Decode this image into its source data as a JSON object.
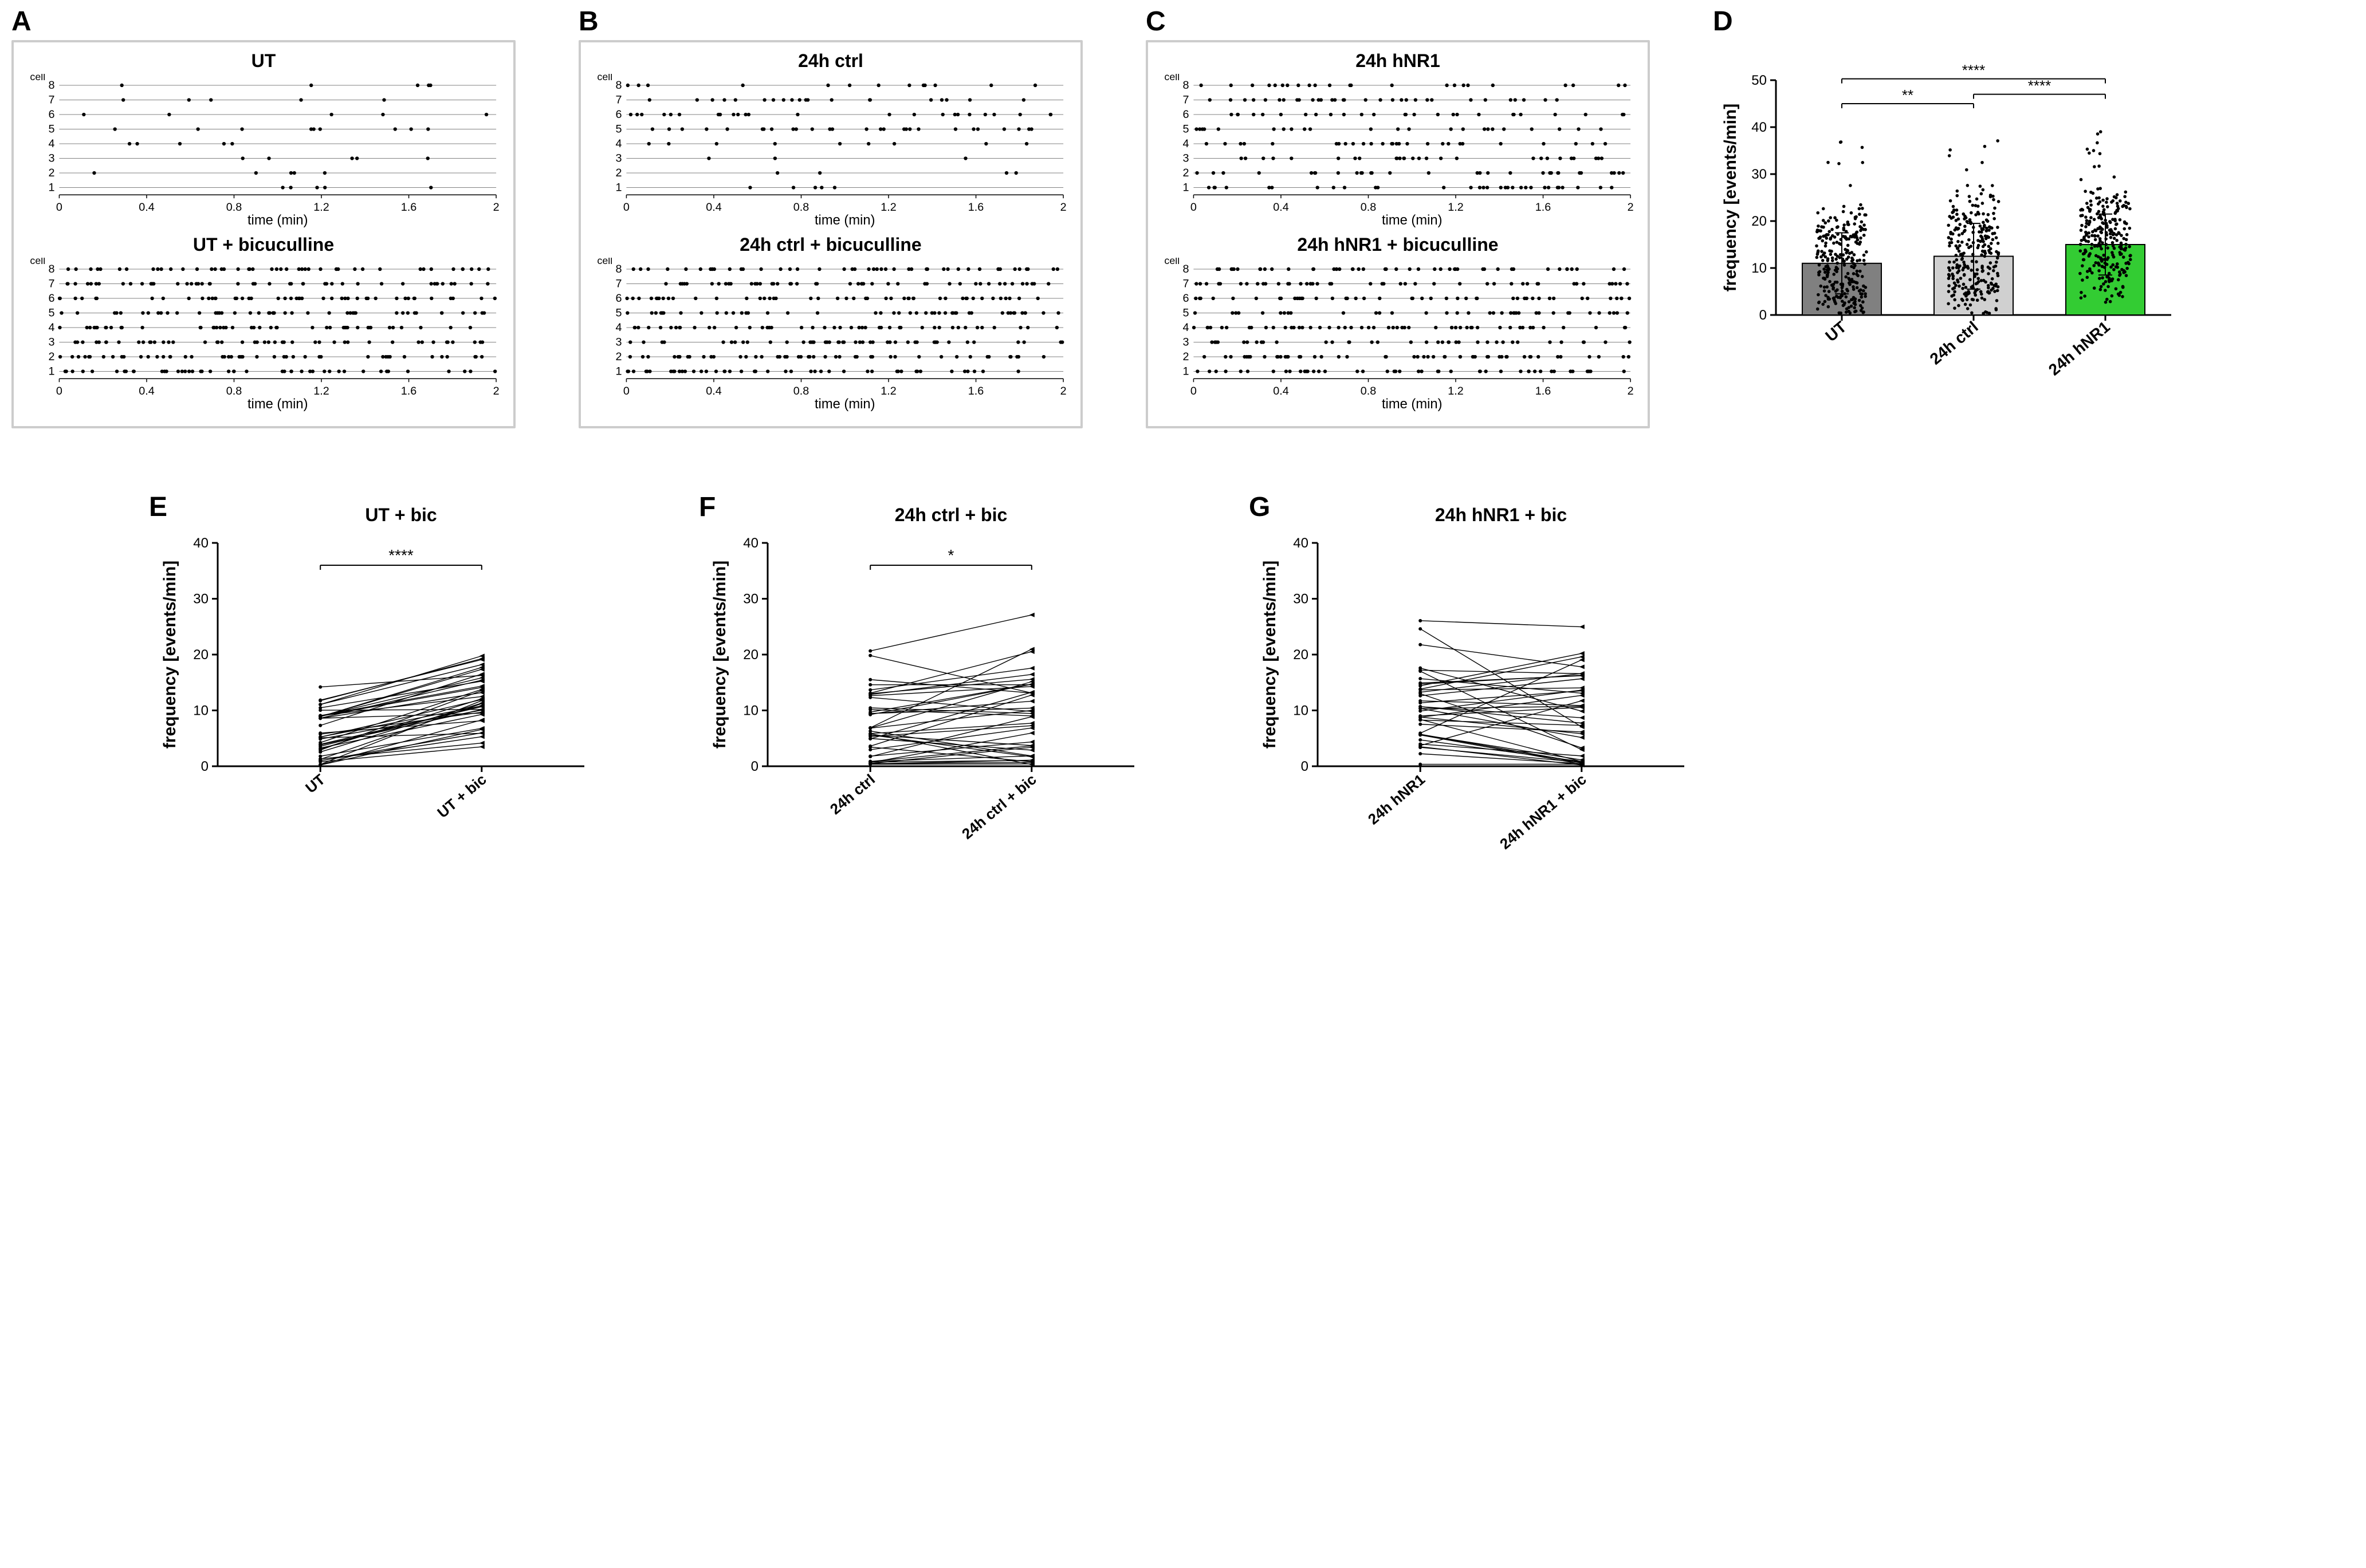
{
  "panels": {
    "A": {
      "letter": "A",
      "upper_title": "UT",
      "lower_title": "UT + bicuculline"
    },
    "B": {
      "letter": "B",
      "upper_title": "24h ctrl",
      "lower_title": "24h ctrl + bicuculline"
    },
    "C": {
      "letter": "C",
      "upper_title": "24h hNR1",
      "lower_title": "24h hNR1 + bicuculline"
    },
    "D": {
      "letter": "D"
    },
    "E": {
      "letter": "E",
      "title": "UT + bic"
    },
    "F": {
      "letter": "F",
      "title": "24h ctrl + bic"
    },
    "G": {
      "letter": "G",
      "title": "24h hNR1 + bic"
    }
  },
  "raster": {
    "x_label": "time (min)",
    "y_label": "cell",
    "x_ticks": [
      0,
      0.4,
      0.8,
      1.2,
      1.6,
      2
    ],
    "y_ticks": [
      1,
      2,
      3,
      4,
      5,
      6,
      7,
      8
    ],
    "tick_fontsize": 20,
    "label_fontsize": 24,
    "title_fontsize": 32,
    "dot_radius": 3.2,
    "dot_color": "#000000",
    "gridline_color": "#000000",
    "gridline_width": 0.5,
    "densities": {
      "A_upper": [
        0.06,
        0.06,
        0.06,
        0.06,
        0.1,
        0.06,
        0.06,
        0.06
      ],
      "A_lower": [
        0.5,
        0.5,
        0.5,
        0.5,
        0.5,
        0.5,
        0.5,
        0.5
      ],
      "B_upper": [
        0.05,
        0.04,
        0.03,
        0.1,
        0.3,
        0.28,
        0.22,
        0.14
      ],
      "B_lower": [
        0.5,
        0.5,
        0.5,
        0.5,
        0.5,
        0.5,
        0.5,
        0.5
      ],
      "C_upper": [
        0.35,
        0.35,
        0.3,
        0.3,
        0.25,
        0.3,
        0.35,
        0.25
      ],
      "C_lower": [
        0.5,
        0.55,
        0.4,
        0.55,
        0.4,
        0.5,
        0.5,
        0.5
      ]
    }
  },
  "bar_chart": {
    "ylabel": "frequency [events/min]",
    "ylim": [
      0,
      50
    ],
    "yticks": [
      0,
      10,
      20,
      30,
      40,
      50
    ],
    "categories": [
      "UT",
      "24h ctrl",
      "24h hNR1"
    ],
    "means": [
      11,
      12.5,
      15
    ],
    "errors": [
      6.5,
      7,
      6.5
    ],
    "colors": [
      "#808080",
      "#d0d0d0",
      "#33cc33"
    ],
    "stroke": "#000000",
    "n_points": 280,
    "scatter_jitter": 0.32,
    "sig": [
      {
        "a": 0,
        "b": 1,
        "y": 45,
        "label": "**"
      },
      {
        "a": 1,
        "b": 2,
        "y": 47,
        "label": "****"
      },
      {
        "a": 0,
        "b": 2,
        "y": 52,
        "label": "****"
      }
    ],
    "label_fontsize": 30,
    "tick_fontsize": 24
  },
  "paired": {
    "ylabel": "frequency [events/min]",
    "ylim": [
      0,
      40
    ],
    "yticks": [
      0,
      10,
      20,
      30,
      40
    ],
    "label_fontsize": 30,
    "tick_fontsize": 24,
    "n_lines": 40,
    "E": {
      "cats": [
        "UT",
        "UT + bic"
      ],
      "sig": "****",
      "base_mean": 5,
      "base_sd": 4,
      "delta_mean": 6,
      "delta_sd": 3
    },
    "F": {
      "cats": [
        "24h ctrl",
        "24h ctrl + bic"
      ],
      "sig": "*",
      "base_mean": 8,
      "base_sd": 6,
      "delta_mean": 2,
      "delta_sd": 5
    },
    "G": {
      "cats": [
        "24h hNR1",
        "24h hNR1 + bic"
      ],
      "sig": "",
      "base_mean": 12,
      "base_sd": 8,
      "delta_mean": -1,
      "delta_sd": 6
    }
  },
  "colors": {
    "axis": "#000000",
    "text": "#000000",
    "panel_border": "#cccccc"
  }
}
